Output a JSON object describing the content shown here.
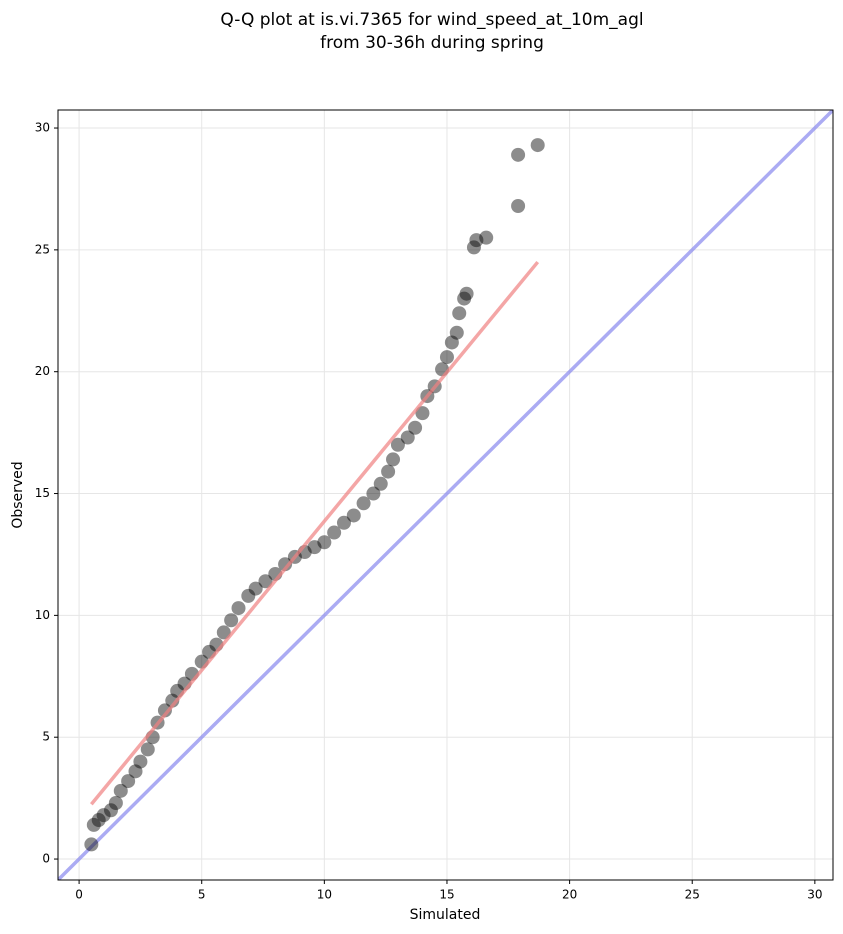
{
  "chart_data": {
    "type": "scatter",
    "title": [
      "Q-Q plot at is.vi.7365 for wind_speed_at_10m_agl",
      "from 30-36h during spring"
    ],
    "xlabel": "Simulated",
    "ylabel": "Observed",
    "x": [
      0.5,
      0.6,
      0.8,
      1,
      1.3,
      1.5,
      1.7,
      2,
      2.3,
      2.5,
      2.8,
      3,
      3.2,
      3.5,
      3.8,
      4,
      4.3,
      4.6,
      5,
      5.3,
      5.6,
      5.9,
      6.2,
      6.5,
      6.9,
      7.2,
      7.6,
      8,
      8.4,
      8.8,
      9.2,
      9.6,
      10,
      10.4,
      10.8,
      11.2,
      11.6,
      12,
      12.3,
      12.6,
      12.8,
      13,
      13.4,
      13.7,
      14,
      14.2,
      14.5,
      14.8,
      15,
      15.2,
      15.4,
      15.5,
      15.7,
      15.8,
      16.1,
      16.2,
      16.6,
      17.9,
      17.9,
      18.7
    ],
    "y": [
      0.6,
      1.4,
      1.6,
      1.8,
      2.0,
      2.3,
      2.8,
      3.2,
      3.6,
      4.0,
      4.5,
      5.0,
      5.6,
      6.1,
      6.5,
      6.9,
      7.2,
      7.6,
      8.1,
      8.5,
      8.8,
      9.3,
      9.8,
      10.3,
      10.8,
      11.1,
      11.4,
      11.7,
      12.1,
      12.4,
      12.6,
      12.8,
      13.0,
      13.4,
      13.8,
      14.1,
      14.6,
      15.0,
      15.4,
      15.9,
      16.4,
      17.0,
      17.3,
      17.7,
      18.3,
      19.0,
      19.4,
      20.1,
      20.6,
      21.2,
      21.6,
      22.4,
      23.0,
      23.2,
      25.1,
      25.4,
      25.5,
      26.8,
      28.9,
      29.3
    ],
    "color": "#000000",
    "fit_line": {
      "color": "#f08080",
      "x": [
        0.5,
        18.7
      ],
      "y": [
        2.25,
        24.5
      ]
    },
    "reference_line": {
      "color": "#8888ee",
      "x": [
        -0.86,
        30.74
      ],
      "y": [
        -0.86,
        30.74
      ]
    },
    "xlim": [
      -0.86,
      30.74
    ],
    "ylim": [
      -0.86,
      30.74
    ],
    "xticks": [
      0,
      5,
      10,
      15,
      20,
      25,
      30
    ],
    "yticks": [
      0,
      5,
      10,
      15,
      20,
      25,
      30
    ],
    "grid": true
  }
}
